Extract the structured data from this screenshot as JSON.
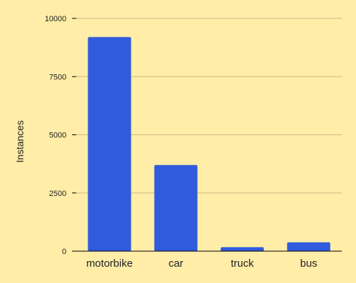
{
  "chart_data": {
    "type": "bar",
    "title": "",
    "xlabel": "",
    "ylabel": "Instances",
    "categories": [
      "motorbike",
      "car",
      "truck",
      "bus"
    ],
    "values": [
      9200,
      3700,
      170,
      380
    ],
    "ylim": [
      0,
      10000
    ],
    "yticks": [
      0,
      2500,
      5000,
      7500,
      10000
    ],
    "ytick_labels": [
      "0",
      "2500",
      "5000",
      "7500",
      "10000"
    ],
    "grid": true,
    "legend": "none"
  },
  "colors": {
    "background": "#ffeda8",
    "bar": "#2f5bdc",
    "gridline": "#c9bb86",
    "axis": "#000000"
  }
}
